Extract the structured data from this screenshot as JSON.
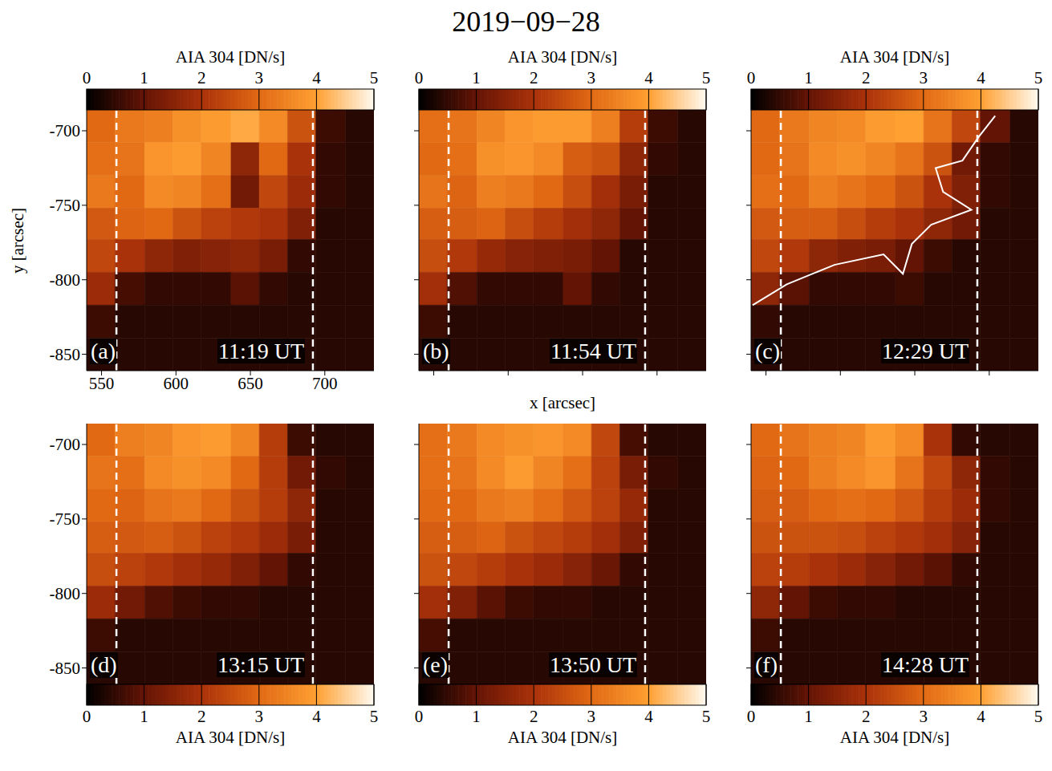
{
  "title": "2019−09−28",
  "chart_data": [
    {
      "type": "heatmap",
      "panel": "(a)",
      "time": "11:19 UT",
      "xlim": [
        540,
        733
      ],
      "ylim": [
        -861,
        -686
      ],
      "xticks": [
        550,
        600,
        650,
        700
      ],
      "yticks": [
        -850,
        -800,
        -750,
        -700
      ],
      "y_label": "y [arcsec]",
      "x_edges": [
        540,
        559,
        579,
        598,
        617,
        637,
        656,
        675,
        694,
        714,
        733
      ],
      "y_edges": [
        -686,
        -708,
        -730,
        -752,
        -773,
        -795,
        -817,
        -839,
        -861
      ],
      "cells": [
        [
          3.0,
          3.3,
          3.4,
          3.7,
          3.9,
          4.1,
          3.6,
          2.6,
          0.6,
          0.4
        ],
        [
          3.1,
          3.2,
          3.8,
          3.9,
          3.5,
          1.6,
          3.0,
          2.0,
          0.5,
          0.4
        ],
        [
          3.3,
          3.0,
          3.6,
          3.5,
          3.1,
          1.2,
          2.4,
          1.8,
          0.5,
          0.4
        ],
        [
          2.7,
          2.9,
          3.0,
          2.6,
          2.3,
          2.1,
          2.0,
          1.4,
          0.4,
          0.4
        ],
        [
          2.4,
          2.0,
          1.6,
          1.4,
          1.5,
          1.6,
          1.3,
          0.5,
          0.4,
          0.4
        ],
        [
          1.8,
          0.7,
          0.5,
          0.5,
          0.5,
          0.9,
          0.5,
          0.4,
          0.4,
          0.4
        ],
        [
          0.6,
          0.4,
          0.4,
          0.4,
          0.4,
          0.4,
          0.4,
          0.4,
          0.4,
          0.4
        ],
        [
          0.4,
          0.4,
          0.4,
          0.4,
          0.4,
          0.4,
          0.4,
          0.4,
          0.4,
          0.4
        ]
      ],
      "reference_lines_x": [
        560,
        692
      ],
      "colorbar": {
        "label": "AIA 304 [DN/s]",
        "range": [
          0,
          5
        ],
        "ticks": [
          0,
          1,
          2,
          3,
          4,
          5
        ]
      }
    },
    {
      "type": "heatmap",
      "panel": "(b)",
      "time": "11:54 UT",
      "xlim": [
        540,
        733
      ],
      "ylim": [
        -861,
        -686
      ],
      "xticks": [
        550,
        600,
        650,
        700
      ],
      "yticks": [
        -850,
        -800,
        -750,
        -700
      ],
      "tick_labels": false,
      "x_label": "x [arcsec]",
      "x_edges": [
        540,
        559,
        579,
        598,
        617,
        637,
        656,
        675,
        694,
        714,
        733
      ],
      "y_edges": [
        -686,
        -708,
        -730,
        -752,
        -773,
        -795,
        -817,
        -839,
        -861
      ],
      "cells": [
        [
          3.1,
          3.2,
          3.5,
          3.8,
          3.9,
          3.9,
          3.4,
          2.2,
          0.6,
          0.4
        ],
        [
          3.0,
          3.1,
          3.7,
          3.8,
          3.6,
          2.8,
          2.6,
          1.6,
          0.5,
          0.4
        ],
        [
          3.2,
          2.9,
          3.4,
          3.3,
          3.0,
          2.5,
          1.9,
          1.3,
          0.4,
          0.4
        ],
        [
          2.8,
          2.8,
          2.9,
          2.5,
          2.2,
          1.9,
          1.6,
          1.0,
          0.4,
          0.4
        ],
        [
          2.5,
          2.1,
          1.7,
          1.5,
          1.4,
          1.3,
          1.0,
          0.4,
          0.4,
          0.4
        ],
        [
          1.9,
          0.8,
          0.5,
          0.5,
          0.5,
          1.0,
          0.5,
          0.4,
          0.4,
          0.4
        ],
        [
          0.6,
          0.4,
          0.4,
          0.4,
          0.4,
          0.4,
          0.4,
          0.4,
          0.4,
          0.4
        ],
        [
          0.4,
          0.4,
          0.4,
          0.4,
          0.4,
          0.4,
          0.4,
          0.4,
          0.4,
          0.4
        ]
      ],
      "reference_lines_x": [
        560,
        692
      ],
      "colorbar": {
        "label": "AIA 304 [DN/s]",
        "range": [
          0,
          5
        ],
        "ticks": [
          0,
          1,
          2,
          3,
          4,
          5
        ]
      }
    },
    {
      "type": "heatmap",
      "panel": "(c)",
      "time": "12:29 UT",
      "xlim": [
        540,
        733
      ],
      "ylim": [
        -861,
        -686
      ],
      "xticks": [
        550,
        600,
        650,
        700
      ],
      "yticks": [
        -850,
        -800,
        -750,
        -700
      ],
      "tick_labels": false,
      "x_edges": [
        540,
        559,
        579,
        598,
        617,
        637,
        656,
        675,
        694,
        714,
        733
      ],
      "y_edges": [
        -686,
        -708,
        -730,
        -752,
        -773,
        -795,
        -817,
        -839,
        -861
      ],
      "cells": [
        [
          3.0,
          3.3,
          3.5,
          3.6,
          3.9,
          4.0,
          3.2,
          2.4,
          1.0,
          0.4
        ],
        [
          3.0,
          3.2,
          3.6,
          3.7,
          3.5,
          3.2,
          2.6,
          1.2,
          0.5,
          0.4
        ],
        [
          3.1,
          3.0,
          3.4,
          3.2,
          3.0,
          2.6,
          2.0,
          1.4,
          0.5,
          0.4
        ],
        [
          2.7,
          2.8,
          2.8,
          2.5,
          2.2,
          2.0,
          1.6,
          1.2,
          0.4,
          0.4
        ],
        [
          2.4,
          2.1,
          1.6,
          1.4,
          1.3,
          1.0,
          0.6,
          0.4,
          0.4,
          0.4
        ],
        [
          1.6,
          0.9,
          0.5,
          0.5,
          0.5,
          0.6,
          0.4,
          0.4,
          0.4,
          0.4
        ],
        [
          0.5,
          0.4,
          0.4,
          0.4,
          0.4,
          0.4,
          0.4,
          0.4,
          0.4,
          0.4
        ],
        [
          0.4,
          0.4,
          0.4,
          0.4,
          0.4,
          0.4,
          0.4,
          0.4,
          0.4,
          0.4
        ]
      ],
      "reference_lines_x": [
        560,
        692
      ],
      "contour": {
        "color": "#ffffff",
        "x": [
          541,
          564,
          596,
          629,
          642,
          648,
          661,
          688,
          669,
          664,
          682,
          693,
          704
        ],
        "y": [
          -817,
          -803,
          -790,
          -783,
          -796,
          -776,
          -763,
          -753,
          -741,
          -725,
          -720,
          -704,
          -690
        ]
      },
      "colorbar": {
        "label": "AIA 304 [DN/s]",
        "range": [
          0,
          5
        ],
        "ticks": [
          0,
          1,
          2,
          3,
          4,
          5
        ]
      }
    },
    {
      "type": "heatmap",
      "panel": "(d)",
      "time": "13:15 UT",
      "xlim": [
        540,
        733
      ],
      "ylim": [
        -861,
        -686
      ],
      "xticks": [
        550,
        600,
        650,
        700
      ],
      "yticks": [
        -850,
        -800,
        -750,
        -700
      ],
      "tick_labels": "y",
      "x_edges": [
        540,
        559,
        579,
        598,
        617,
        637,
        656,
        675,
        694,
        714,
        733
      ],
      "y_edges": [
        -686,
        -708,
        -730,
        -752,
        -773,
        -795,
        -817,
        -839,
        -861
      ],
      "cells": [
        [
          3.0,
          3.4,
          3.5,
          3.8,
          3.9,
          3.5,
          2.2,
          0.6,
          0.4,
          0.4
        ],
        [
          3.2,
          3.1,
          3.6,
          3.7,
          3.6,
          3.0,
          2.2,
          1.2,
          0.5,
          0.4
        ],
        [
          3.0,
          2.9,
          3.2,
          3.3,
          3.0,
          2.6,
          2.2,
          1.6,
          0.4,
          0.4
        ],
        [
          2.8,
          2.7,
          2.8,
          2.6,
          2.3,
          2.1,
          1.8,
          1.3,
          0.4,
          0.4
        ],
        [
          2.5,
          2.3,
          2.1,
          1.9,
          1.7,
          1.4,
          1.0,
          0.5,
          0.4,
          0.4
        ],
        [
          1.8,
          1.2,
          0.8,
          0.6,
          0.5,
          0.5,
          0.4,
          0.4,
          0.4,
          0.4
        ],
        [
          0.6,
          0.4,
          0.4,
          0.4,
          0.4,
          0.4,
          0.4,
          0.4,
          0.4,
          0.4
        ],
        [
          0.4,
          0.4,
          0.4,
          0.4,
          0.4,
          0.4,
          0.4,
          0.4,
          0.4,
          0.4
        ]
      ],
      "reference_lines_x": [
        560,
        692
      ],
      "colorbar": {
        "label": "AIA 304 [DN/s]",
        "range": [
          0,
          5
        ],
        "ticks": [
          0,
          1,
          2,
          3,
          4,
          5
        ]
      }
    },
    {
      "type": "heatmap",
      "panel": "(e)",
      "time": "13:50 UT",
      "xlim": [
        540,
        733
      ],
      "ylim": [
        -861,
        -686
      ],
      "xticks": [
        550,
        600,
        650,
        700
      ],
      "yticks": [
        -850,
        -800,
        -750,
        -700
      ],
      "tick_labels": false,
      "x_edges": [
        540,
        559,
        579,
        598,
        617,
        637,
        656,
        675,
        694,
        714,
        733
      ],
      "y_edges": [
        -686,
        -708,
        -730,
        -752,
        -773,
        -795,
        -817,
        -839,
        -861
      ],
      "cells": [
        [
          3.1,
          3.3,
          3.6,
          3.7,
          3.8,
          3.6,
          2.4,
          0.7,
          0.4,
          0.4
        ],
        [
          3.1,
          3.2,
          3.6,
          3.9,
          3.5,
          3.1,
          2.3,
          1.3,
          0.5,
          0.4
        ],
        [
          3.0,
          3.0,
          3.3,
          3.4,
          3.1,
          2.7,
          2.3,
          1.7,
          0.4,
          0.4
        ],
        [
          2.8,
          2.8,
          2.9,
          2.6,
          2.4,
          2.2,
          1.9,
          1.4,
          0.4,
          0.4
        ],
        [
          2.6,
          2.4,
          2.2,
          2.0,
          1.8,
          1.5,
          1.1,
          0.5,
          0.4,
          0.4
        ],
        [
          1.9,
          1.4,
          0.9,
          0.6,
          0.5,
          0.5,
          0.4,
          0.4,
          0.4,
          0.4
        ],
        [
          0.7,
          0.4,
          0.4,
          0.4,
          0.4,
          0.4,
          0.4,
          0.4,
          0.4,
          0.4
        ],
        [
          0.4,
          0.4,
          0.4,
          0.4,
          0.4,
          0.4,
          0.4,
          0.4,
          0.4,
          0.4
        ]
      ],
      "reference_lines_x": [
        560,
        692
      ],
      "colorbar": {
        "label": "AIA 304 [DN/s]",
        "range": [
          0,
          5
        ],
        "ticks": [
          0,
          1,
          2,
          3,
          4,
          5
        ]
      }
    },
    {
      "type": "heatmap",
      "panel": "(f)",
      "time": "14:28 UT",
      "xlim": [
        540,
        733
      ],
      "ylim": [
        -861,
        -686
      ],
      "xticks": [
        550,
        600,
        650,
        700
      ],
      "yticks": [
        -850,
        -800,
        -750,
        -700
      ],
      "tick_labels": false,
      "x_edges": [
        540,
        559,
        579,
        598,
        617,
        637,
        656,
        675,
        694,
        714,
        733
      ],
      "y_edges": [
        -686,
        -708,
        -730,
        -752,
        -773,
        -795,
        -817,
        -839,
        -861
      ],
      "cells": [
        [
          3.0,
          3.2,
          3.4,
          3.5,
          3.9,
          3.6,
          2.0,
          0.5,
          0.4,
          0.4
        ],
        [
          2.9,
          3.0,
          3.4,
          3.6,
          3.8,
          3.2,
          2.4,
          1.6,
          0.5,
          0.4
        ],
        [
          2.8,
          2.8,
          3.0,
          3.1,
          3.0,
          2.7,
          2.2,
          1.8,
          0.5,
          0.4
        ],
        [
          2.6,
          2.6,
          2.6,
          2.5,
          2.3,
          2.1,
          1.9,
          1.5,
          0.4,
          0.4
        ],
        [
          2.3,
          2.2,
          2.0,
          1.8,
          1.5,
          1.2,
          0.9,
          0.5,
          0.4,
          0.4
        ],
        [
          1.6,
          1.0,
          0.6,
          0.5,
          0.5,
          0.4,
          0.4,
          0.4,
          0.4,
          0.4
        ],
        [
          0.6,
          0.4,
          0.4,
          0.4,
          0.4,
          0.4,
          0.4,
          0.4,
          0.4,
          0.4
        ],
        [
          0.4,
          0.4,
          0.4,
          0.4,
          0.4,
          0.4,
          0.4,
          0.4,
          0.4,
          0.4
        ]
      ],
      "reference_lines_x": [
        560,
        692
      ],
      "colorbar": {
        "label": "AIA 304 [DN/s]",
        "range": [
          0,
          5
        ],
        "ticks": [
          0,
          1,
          2,
          3,
          4,
          5
        ]
      }
    }
  ]
}
